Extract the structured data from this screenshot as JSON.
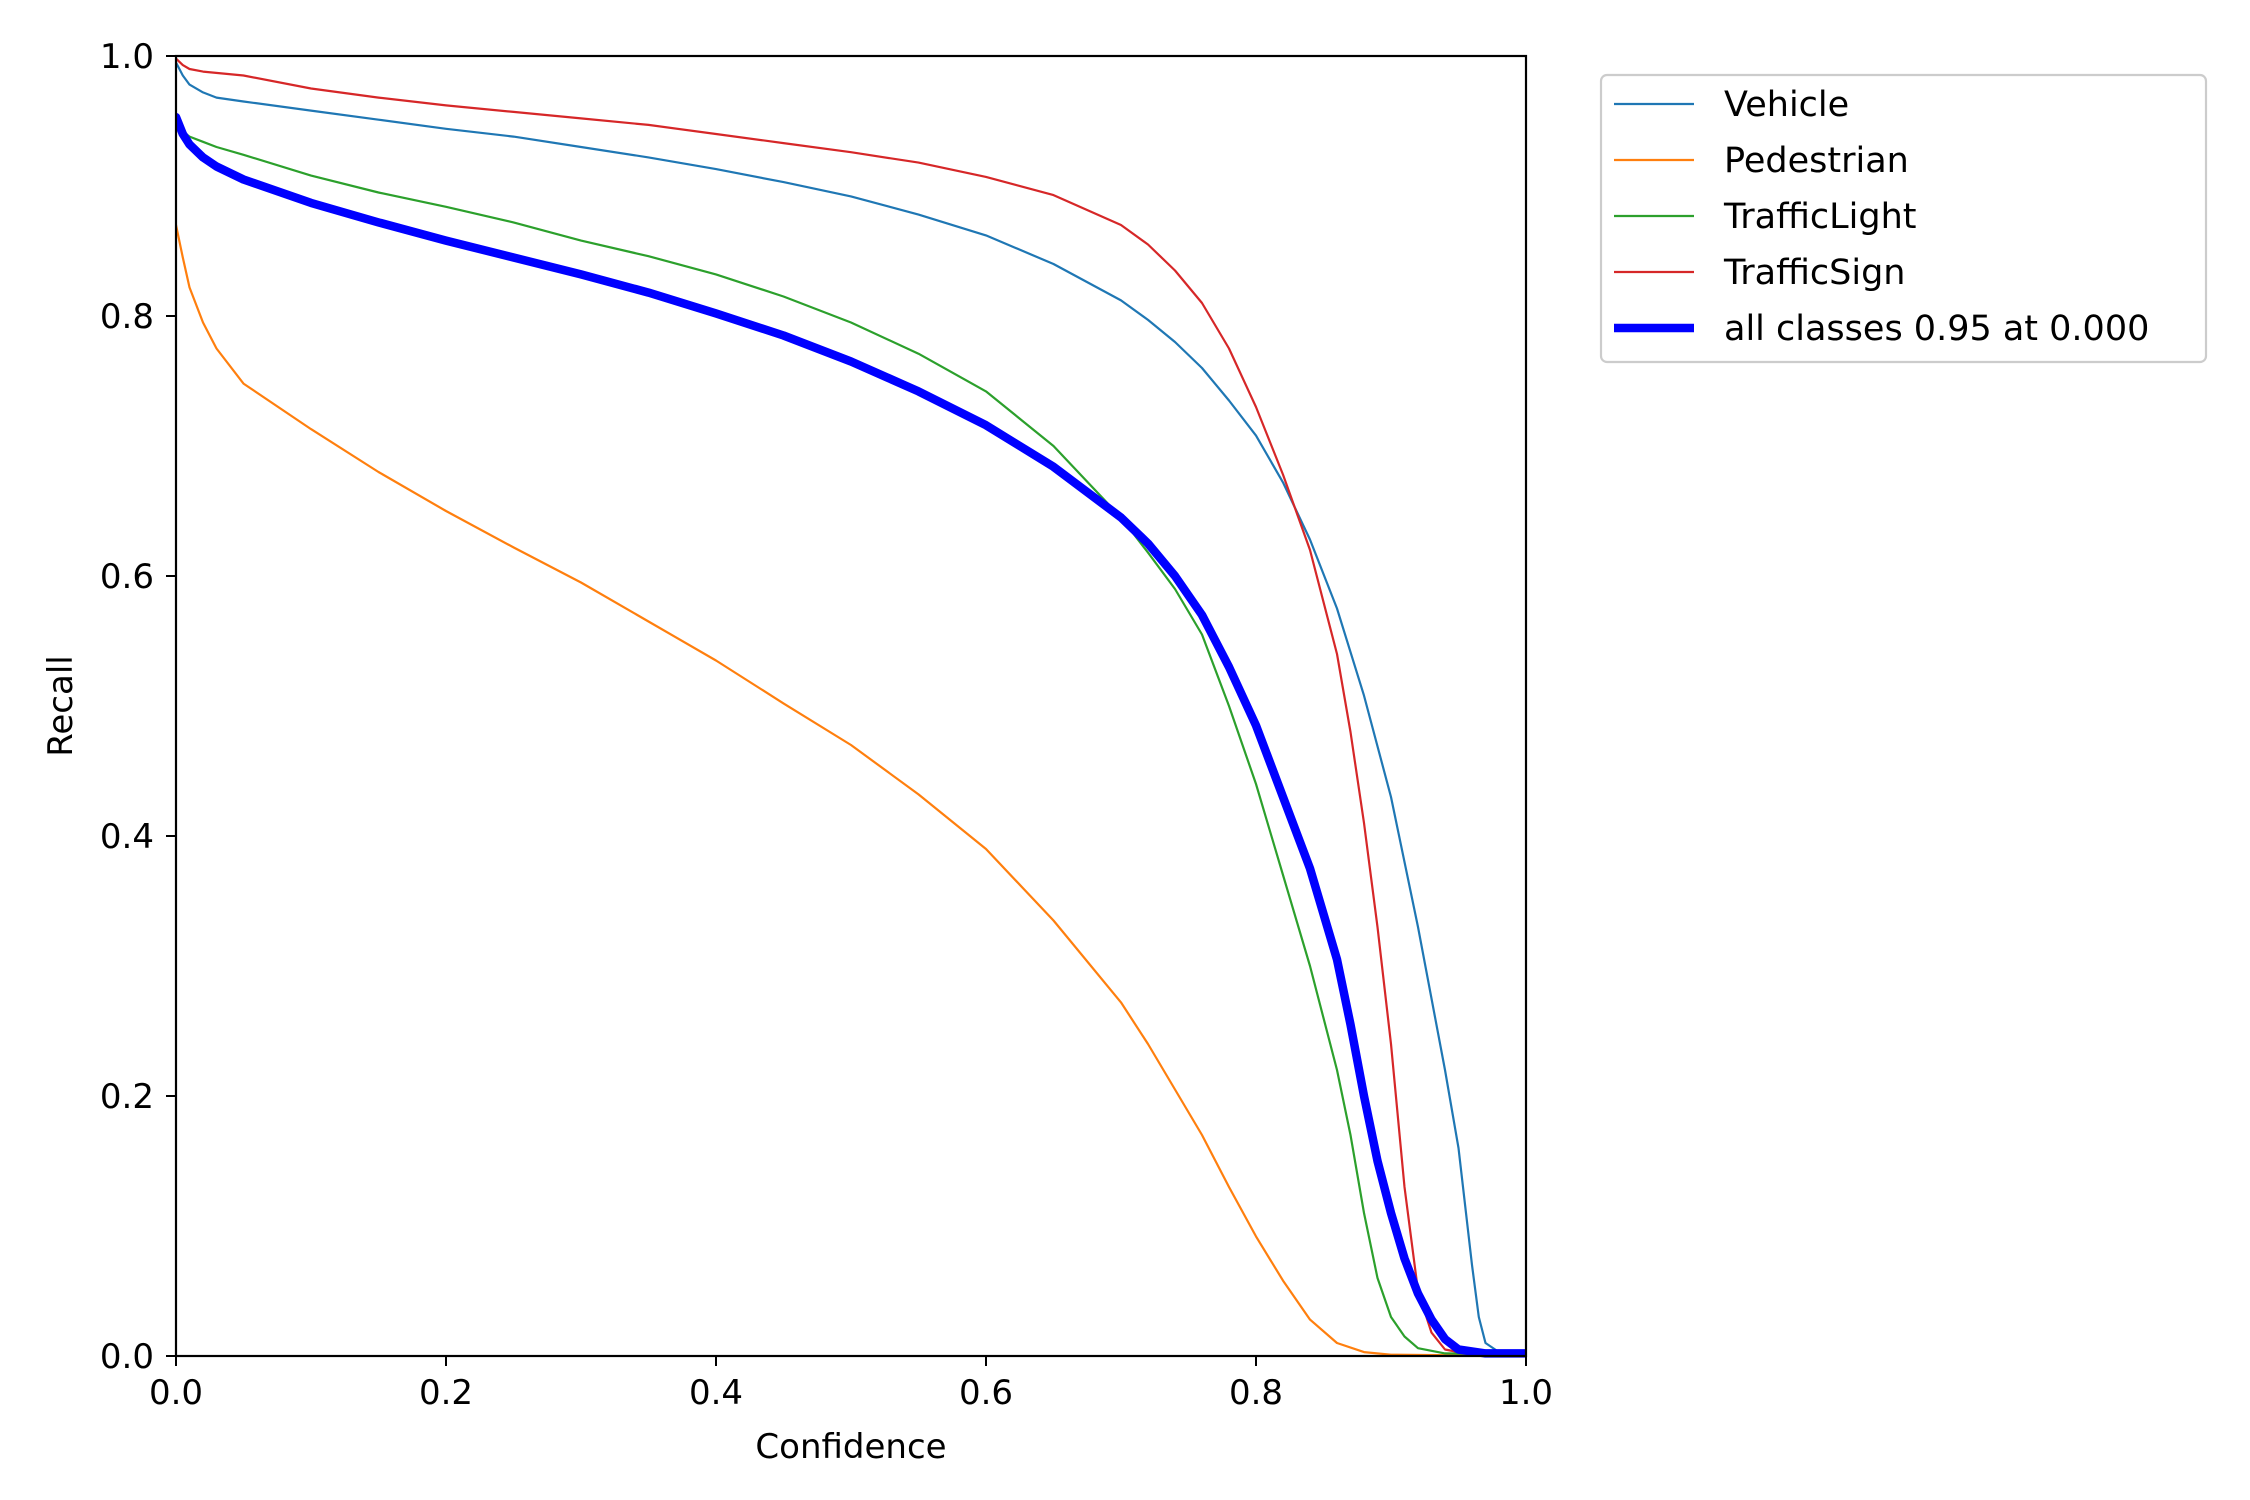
{
  "chart_data": {
    "type": "line",
    "title": "",
    "xlabel": "Confidence",
    "ylabel": "Recall",
    "xlim": [
      0,
      1
    ],
    "ylim": [
      0,
      1
    ],
    "xticks": [
      "0.0",
      "0.2",
      "0.4",
      "0.6",
      "0.8",
      "1.0"
    ],
    "yticks": [
      "0.0",
      "0.2",
      "0.4",
      "0.6",
      "0.8",
      "1.0"
    ],
    "grid": false,
    "legend_position": "outside-top-right",
    "series": [
      {
        "name": "Vehicle",
        "color": "#1f77b4",
        "line_width": "thin",
        "points": [
          [
            0.0,
            0.995
          ],
          [
            0.005,
            0.985
          ],
          [
            0.01,
            0.978
          ],
          [
            0.02,
            0.972
          ],
          [
            0.03,
            0.968
          ],
          [
            0.05,
            0.965
          ],
          [
            0.1,
            0.958
          ],
          [
            0.15,
            0.951
          ],
          [
            0.2,
            0.944
          ],
          [
            0.25,
            0.938
          ],
          [
            0.3,
            0.93
          ],
          [
            0.35,
            0.922
          ],
          [
            0.4,
            0.913
          ],
          [
            0.45,
            0.903
          ],
          [
            0.5,
            0.892
          ],
          [
            0.55,
            0.878
          ],
          [
            0.6,
            0.862
          ],
          [
            0.65,
            0.84
          ],
          [
            0.7,
            0.812
          ],
          [
            0.72,
            0.797
          ],
          [
            0.74,
            0.78
          ],
          [
            0.76,
            0.76
          ],
          [
            0.78,
            0.735
          ],
          [
            0.8,
            0.708
          ],
          [
            0.82,
            0.672
          ],
          [
            0.84,
            0.628
          ],
          [
            0.86,
            0.575
          ],
          [
            0.88,
            0.508
          ],
          [
            0.9,
            0.43
          ],
          [
            0.92,
            0.33
          ],
          [
            0.94,
            0.22
          ],
          [
            0.95,
            0.16
          ],
          [
            0.96,
            0.07
          ],
          [
            0.965,
            0.03
          ],
          [
            0.97,
            0.01
          ],
          [
            0.98,
            0.003
          ],
          [
            1.0,
            0.002
          ]
        ]
      },
      {
        "name": "Pedestrian",
        "color": "#ff7f0e",
        "line_width": "thin",
        "points": [
          [
            0.0,
            0.87
          ],
          [
            0.005,
            0.845
          ],
          [
            0.01,
            0.822
          ],
          [
            0.02,
            0.795
          ],
          [
            0.03,
            0.775
          ],
          [
            0.05,
            0.748
          ],
          [
            0.1,
            0.713
          ],
          [
            0.15,
            0.68
          ],
          [
            0.2,
            0.65
          ],
          [
            0.25,
            0.622
          ],
          [
            0.3,
            0.595
          ],
          [
            0.35,
            0.565
          ],
          [
            0.4,
            0.535
          ],
          [
            0.45,
            0.502
          ],
          [
            0.5,
            0.47
          ],
          [
            0.55,
            0.432
          ],
          [
            0.6,
            0.39
          ],
          [
            0.65,
            0.335
          ],
          [
            0.7,
            0.272
          ],
          [
            0.72,
            0.24
          ],
          [
            0.74,
            0.205
          ],
          [
            0.76,
            0.17
          ],
          [
            0.78,
            0.13
          ],
          [
            0.8,
            0.092
          ],
          [
            0.82,
            0.058
          ],
          [
            0.84,
            0.028
          ],
          [
            0.86,
            0.01
          ],
          [
            0.88,
            0.003
          ],
          [
            0.9,
            0.001
          ],
          [
            1.0,
            0.0
          ]
        ]
      },
      {
        "name": "TrafficLight",
        "color": "#2ca02c",
        "line_width": "thin",
        "points": [
          [
            0.0,
            0.95
          ],
          [
            0.005,
            0.942
          ],
          [
            0.01,
            0.938
          ],
          [
            0.02,
            0.934
          ],
          [
            0.03,
            0.93
          ],
          [
            0.05,
            0.924
          ],
          [
            0.1,
            0.908
          ],
          [
            0.15,
            0.895
          ],
          [
            0.2,
            0.884
          ],
          [
            0.25,
            0.872
          ],
          [
            0.3,
            0.858
          ],
          [
            0.35,
            0.846
          ],
          [
            0.4,
            0.832
          ],
          [
            0.45,
            0.815
          ],
          [
            0.5,
            0.795
          ],
          [
            0.55,
            0.771
          ],
          [
            0.6,
            0.742
          ],
          [
            0.65,
            0.7
          ],
          [
            0.7,
            0.645
          ],
          [
            0.72,
            0.618
          ],
          [
            0.74,
            0.59
          ],
          [
            0.76,
            0.555
          ],
          [
            0.78,
            0.5
          ],
          [
            0.8,
            0.44
          ],
          [
            0.82,
            0.37
          ],
          [
            0.84,
            0.3
          ],
          [
            0.86,
            0.22
          ],
          [
            0.87,
            0.17
          ],
          [
            0.88,
            0.11
          ],
          [
            0.89,
            0.06
          ],
          [
            0.9,
            0.03
          ],
          [
            0.91,
            0.015
          ],
          [
            0.92,
            0.006
          ],
          [
            0.94,
            0.002
          ],
          [
            1.0,
            0.001
          ]
        ]
      },
      {
        "name": "TrafficSign",
        "color": "#d62728",
        "line_width": "thin",
        "points": [
          [
            0.0,
            0.998
          ],
          [
            0.005,
            0.993
          ],
          [
            0.01,
            0.99
          ],
          [
            0.02,
            0.988
          ],
          [
            0.05,
            0.985
          ],
          [
            0.1,
            0.975
          ],
          [
            0.15,
            0.968
          ],
          [
            0.2,
            0.962
          ],
          [
            0.25,
            0.957
          ],
          [
            0.3,
            0.952
          ],
          [
            0.35,
            0.947
          ],
          [
            0.4,
            0.94
          ],
          [
            0.45,
            0.933
          ],
          [
            0.5,
            0.926
          ],
          [
            0.55,
            0.918
          ],
          [
            0.6,
            0.907
          ],
          [
            0.65,
            0.893
          ],
          [
            0.7,
            0.87
          ],
          [
            0.72,
            0.855
          ],
          [
            0.74,
            0.835
          ],
          [
            0.76,
            0.81
          ],
          [
            0.78,
            0.775
          ],
          [
            0.8,
            0.73
          ],
          [
            0.82,
            0.678
          ],
          [
            0.84,
            0.62
          ],
          [
            0.86,
            0.54
          ],
          [
            0.87,
            0.48
          ],
          [
            0.88,
            0.41
          ],
          [
            0.89,
            0.33
          ],
          [
            0.9,
            0.24
          ],
          [
            0.91,
            0.13
          ],
          [
            0.92,
            0.05
          ],
          [
            0.93,
            0.018
          ],
          [
            0.94,
            0.005
          ],
          [
            0.96,
            0.001
          ],
          [
            1.0,
            0.0
          ]
        ]
      },
      {
        "name": "all classes 0.95 at 0.000",
        "color": "#0000ff",
        "line_width": "thick",
        "points": [
          [
            0.0,
            0.953
          ],
          [
            0.005,
            0.94
          ],
          [
            0.01,
            0.932
          ],
          [
            0.02,
            0.922
          ],
          [
            0.03,
            0.915
          ],
          [
            0.05,
            0.905
          ],
          [
            0.1,
            0.887
          ],
          [
            0.15,
            0.872
          ],
          [
            0.2,
            0.858
          ],
          [
            0.25,
            0.845
          ],
          [
            0.3,
            0.832
          ],
          [
            0.35,
            0.818
          ],
          [
            0.4,
            0.802
          ],
          [
            0.45,
            0.785
          ],
          [
            0.5,
            0.765
          ],
          [
            0.55,
            0.742
          ],
          [
            0.6,
            0.716
          ],
          [
            0.65,
            0.684
          ],
          [
            0.7,
            0.645
          ],
          [
            0.72,
            0.625
          ],
          [
            0.74,
            0.6
          ],
          [
            0.76,
            0.57
          ],
          [
            0.78,
            0.53
          ],
          [
            0.8,
            0.485
          ],
          [
            0.82,
            0.43
          ],
          [
            0.84,
            0.375
          ],
          [
            0.86,
            0.305
          ],
          [
            0.87,
            0.255
          ],
          [
            0.88,
            0.2
          ],
          [
            0.89,
            0.15
          ],
          [
            0.9,
            0.11
          ],
          [
            0.91,
            0.075
          ],
          [
            0.92,
            0.048
          ],
          [
            0.93,
            0.028
          ],
          [
            0.94,
            0.013
          ],
          [
            0.95,
            0.005
          ],
          [
            0.97,
            0.002
          ],
          [
            1.0,
            0.002
          ]
        ]
      }
    ]
  }
}
